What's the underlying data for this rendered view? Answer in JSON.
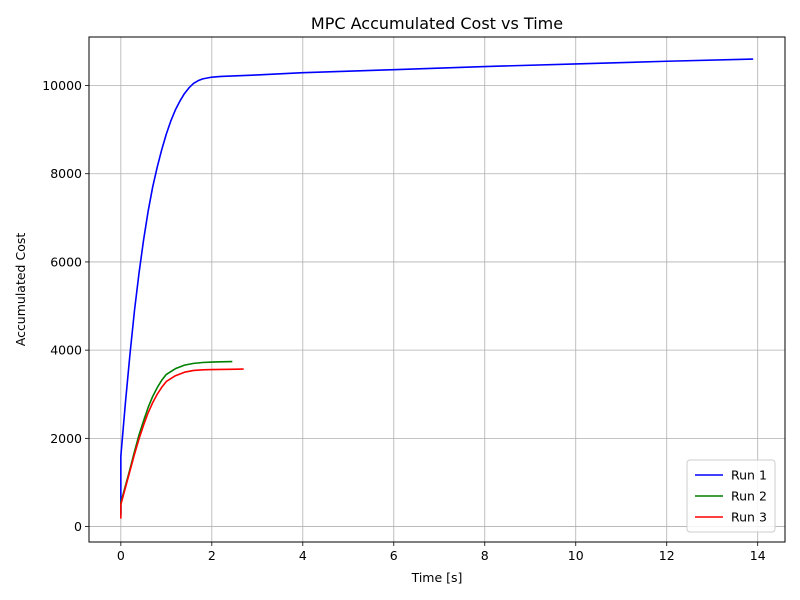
{
  "chart_data": {
    "type": "line",
    "title": "MPC Accumulated Cost vs Time",
    "xlabel": "Time [s]",
    "ylabel": "Accumulated Cost",
    "xlim": [
      -0.7,
      14.6
    ],
    "ylim": [
      -350,
      11100
    ],
    "xticks": [
      0,
      2,
      4,
      6,
      8,
      10,
      12,
      14
    ],
    "yticks": [
      0,
      2000,
      4000,
      6000,
      8000,
      10000
    ],
    "grid": true,
    "legend_position": "bottom-right",
    "series": [
      {
        "name": "Run 1",
        "color": "#0000ff",
        "points": [
          [
            0,
            250
          ],
          [
            0,
            1600
          ],
          [
            0.05,
            2200
          ],
          [
            0.1,
            2800
          ],
          [
            0.2,
            3900
          ],
          [
            0.3,
            4900
          ],
          [
            0.4,
            5750
          ],
          [
            0.5,
            6500
          ],
          [
            0.6,
            7150
          ],
          [
            0.7,
            7700
          ],
          [
            0.8,
            8150
          ],
          [
            0.9,
            8550
          ],
          [
            1.0,
            8900
          ],
          [
            1.1,
            9200
          ],
          [
            1.2,
            9450
          ],
          [
            1.3,
            9650
          ],
          [
            1.4,
            9820
          ],
          [
            1.5,
            9950
          ],
          [
            1.6,
            10050
          ],
          [
            1.7,
            10110
          ],
          [
            1.8,
            10150
          ],
          [
            1.9,
            10170
          ],
          [
            2.0,
            10190
          ],
          [
            2.2,
            10205
          ],
          [
            3.0,
            10240
          ],
          [
            4.0,
            10290
          ],
          [
            6.0,
            10360
          ],
          [
            8.0,
            10430
          ],
          [
            10.0,
            10490
          ],
          [
            12.0,
            10550
          ],
          [
            13.9,
            10600
          ]
        ]
      },
      {
        "name": "Run 2",
        "color": "#008000",
        "points": [
          [
            0,
            300
          ],
          [
            0,
            550
          ],
          [
            0.1,
            920
          ],
          [
            0.2,
            1300
          ],
          [
            0.3,
            1700
          ],
          [
            0.4,
            2080
          ],
          [
            0.5,
            2400
          ],
          [
            0.6,
            2700
          ],
          [
            0.7,
            2950
          ],
          [
            0.8,
            3150
          ],
          [
            0.9,
            3320
          ],
          [
            1.0,
            3450
          ],
          [
            1.2,
            3580
          ],
          [
            1.4,
            3660
          ],
          [
            1.6,
            3700
          ],
          [
            1.8,
            3720
          ],
          [
            2.0,
            3730
          ],
          [
            2.2,
            3735
          ],
          [
            2.45,
            3740
          ]
        ]
      },
      {
        "name": "Run 3",
        "color": "#ff0000",
        "points": [
          [
            0,
            180
          ],
          [
            0,
            500
          ],
          [
            0.1,
            880
          ],
          [
            0.2,
            1260
          ],
          [
            0.3,
            1640
          ],
          [
            0.4,
            1990
          ],
          [
            0.5,
            2300
          ],
          [
            0.6,
            2580
          ],
          [
            0.7,
            2810
          ],
          [
            0.8,
            3000
          ],
          [
            0.9,
            3160
          ],
          [
            1.0,
            3290
          ],
          [
            1.2,
            3420
          ],
          [
            1.4,
            3500
          ],
          [
            1.6,
            3540
          ],
          [
            1.8,
            3555
          ],
          [
            2.0,
            3560
          ],
          [
            2.4,
            3565
          ],
          [
            2.7,
            3570
          ]
        ]
      }
    ]
  }
}
